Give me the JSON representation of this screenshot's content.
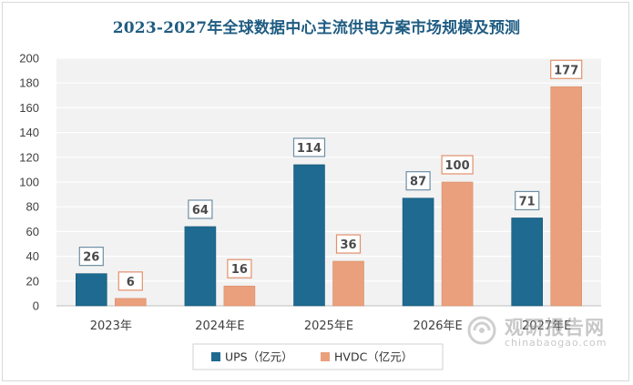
{
  "chart_data": {
    "type": "bar",
    "title": "2023-2027年全球数据中心主流供电方案市场规模及预测",
    "categories": [
      "2023年",
      "2024年E",
      "2025年E",
      "2026年E",
      "2027年E"
    ],
    "series": [
      {
        "name": "UPS（亿元）",
        "values": [
          26,
          64,
          114,
          87,
          71
        ],
        "color": "#1e6a90"
      },
      {
        "name": "HVDC（亿元）",
        "values": [
          6,
          16,
          36,
          100,
          177
        ],
        "color": "#eaa07c"
      }
    ],
    "ylim": [
      0,
      200
    ],
    "yticks": [
      0,
      20,
      40,
      60,
      80,
      100,
      120,
      140,
      160,
      180,
      200
    ],
    "grid": true,
    "legend_position": "bottom"
  },
  "watermark": {
    "cn": "观研报告网",
    "en": "chinabaogao.com"
  },
  "colors": {
    "title": "#1f5c82",
    "plot_background": "#f2f2f2"
  }
}
